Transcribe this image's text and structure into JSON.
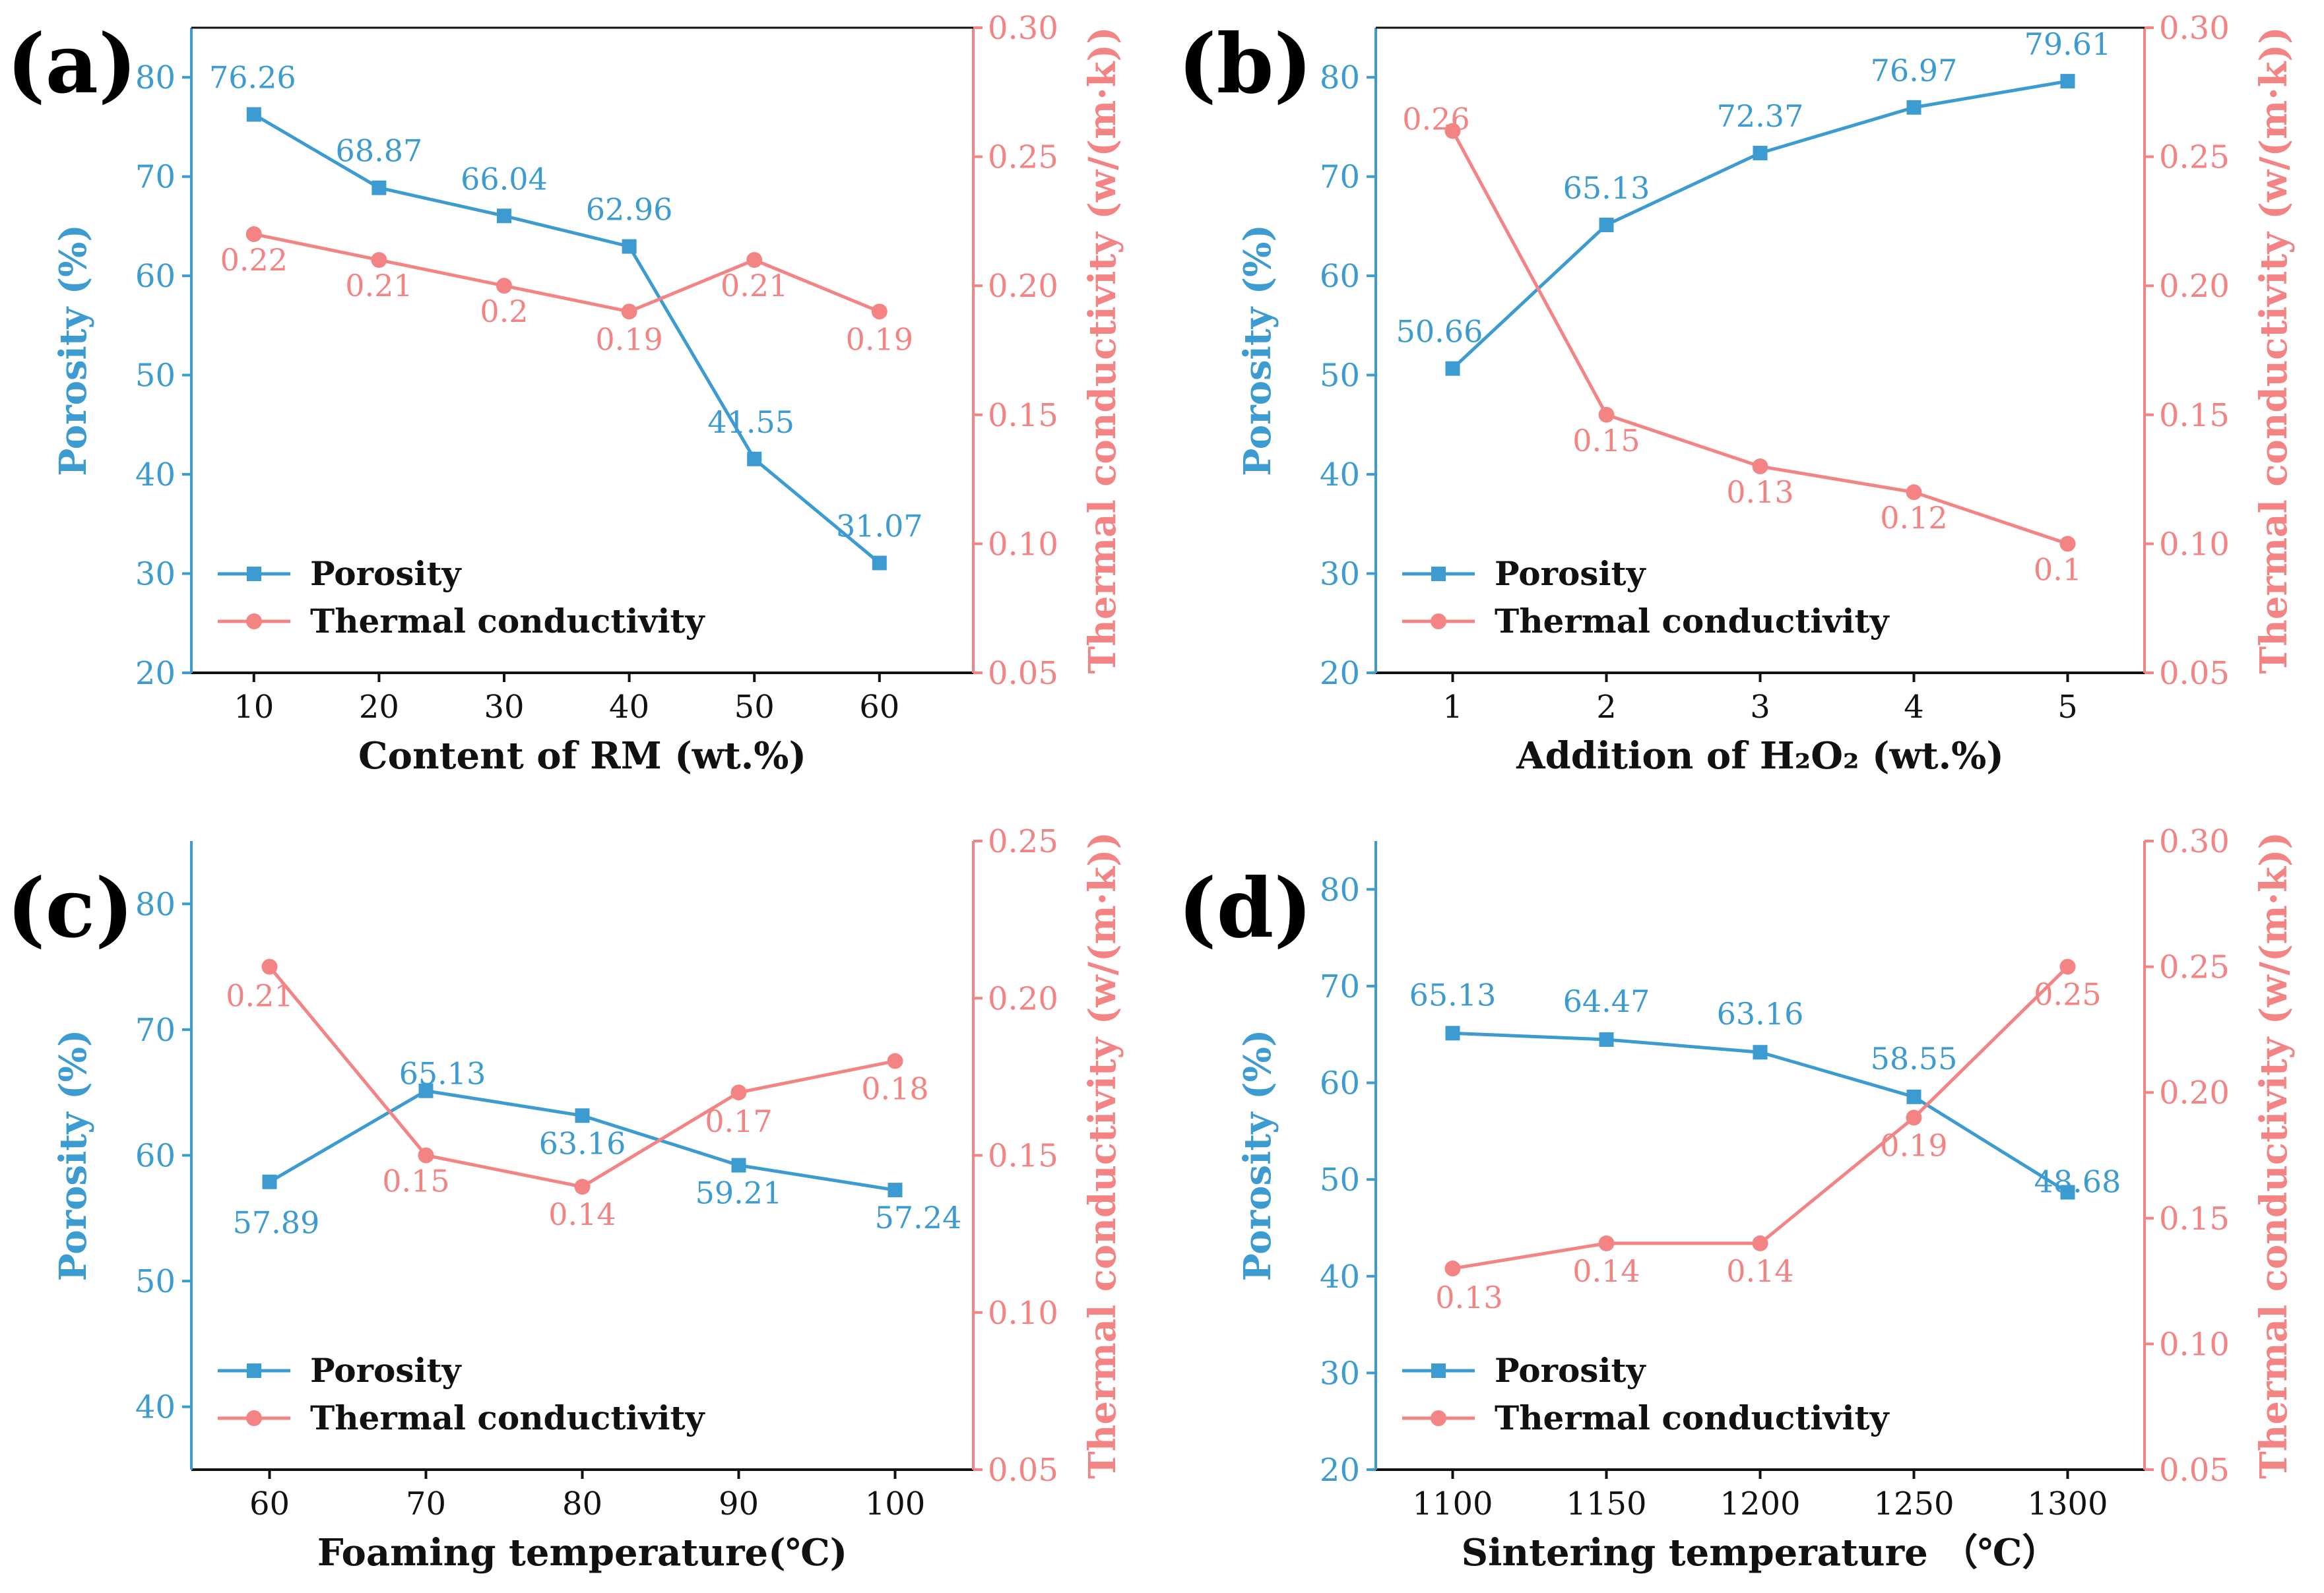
{
  "colors": {
    "porosity": "#3C9BD0",
    "thermal": "#F48383",
    "axis": "#111111"
  },
  "legend": {
    "porosity": "Porosity",
    "thermal": "Thermal conductivity"
  },
  "chart_data": [
    {
      "type": "line",
      "panel": "(a)",
      "xlabel": "Content of RM (wt.%)",
      "ylabel_left": "Porosity (%)",
      "ylabel_right": "Thermal conductivity (w/(m·k))",
      "x": [
        10,
        20,
        30,
        40,
        50,
        60
      ],
      "x_ticks": [
        "10",
        "20",
        "30",
        "40",
        "50",
        "60"
      ],
      "xlim": [
        5,
        67.5
      ],
      "ylim_left": [
        20,
        85
      ],
      "yticks_left": [
        20,
        30,
        40,
        50,
        60,
        70,
        80
      ],
      "ylim_right": [
        0.05,
        0.3
      ],
      "yticks_right": [
        0.05,
        0.1,
        0.15,
        0.2,
        0.25,
        0.3
      ],
      "series": [
        {
          "name": "Porosity",
          "axis": "left",
          "marker": "square",
          "values": [
            76.26,
            68.87,
            66.04,
            62.96,
            41.55,
            31.07
          ],
          "labels": [
            "76.26",
            "68.87",
            "66.04",
            "62.96",
            "41.55",
            "31.07"
          ]
        },
        {
          "name": "Thermal conductivity",
          "axis": "right",
          "marker": "circle",
          "values": [
            0.22,
            0.21,
            0.2,
            0.19,
            0.21,
            0.19
          ],
          "labels": [
            "0.22",
            "0.21",
            "0.2",
            "0.19",
            "0.21",
            "0.19"
          ]
        }
      ]
    },
    {
      "type": "line",
      "panel": "(b)",
      "xlabel": "Addition of H₂O₂ (wt.%)",
      "ylabel_left": "Porosity (%)",
      "ylabel_right": "Thermal conductivity (w/(m·k))",
      "x": [
        1,
        2,
        3,
        4,
        5
      ],
      "x_ticks": [
        "1",
        "2",
        "3",
        "4",
        "5"
      ],
      "xlim": [
        0.5,
        5.5
      ],
      "ylim_left": [
        20,
        85
      ],
      "yticks_left": [
        20,
        30,
        40,
        50,
        60,
        70,
        80
      ],
      "ylim_right": [
        0.05,
        0.3
      ],
      "yticks_right": [
        0.05,
        0.1,
        0.15,
        0.2,
        0.25,
        0.3
      ],
      "series": [
        {
          "name": "Porosity",
          "axis": "left",
          "marker": "square",
          "values": [
            50.66,
            65.13,
            72.37,
            76.97,
            79.61
          ],
          "labels": [
            "50.66",
            "65.13",
            "72.37",
            "76.97",
            "79.61"
          ]
        },
        {
          "name": "Thermal conductivity",
          "axis": "right",
          "marker": "circle",
          "values": [
            0.26,
            0.15,
            0.13,
            0.12,
            0.1
          ],
          "labels": [
            "0.26",
            "0.15",
            "0.13",
            "0.12",
            "0.1"
          ]
        }
      ]
    },
    {
      "type": "line",
      "panel": "(c)",
      "xlabel": "Foaming temperature(℃)",
      "ylabel_left": "Porosity (%)",
      "ylabel_right": "Thermal conductivity (w/(m·k))",
      "x": [
        60,
        70,
        80,
        90,
        100
      ],
      "x_ticks": [
        "60",
        "70",
        "80",
        "90",
        "100"
      ],
      "xlim": [
        55,
        105
      ],
      "ylim_left": [
        35,
        85
      ],
      "yticks_left": [
        40,
        50,
        60,
        70,
        80
      ],
      "ylim_right": [
        0.05,
        0.25
      ],
      "yticks_right": [
        0.05,
        0.1,
        0.15,
        0.2,
        0.25
      ],
      "series": [
        {
          "name": "Porosity",
          "axis": "left",
          "marker": "square",
          "values": [
            57.89,
            65.13,
            63.16,
            59.21,
            57.24
          ],
          "labels": [
            "57.89",
            "65.13",
            "63.16",
            "59.21",
            "57.24"
          ]
        },
        {
          "name": "Thermal conductivity",
          "axis": "right",
          "marker": "circle",
          "values": [
            0.21,
            0.15,
            0.14,
            0.17,
            0.18
          ],
          "labels": [
            "0.21",
            "0.15",
            "0.14",
            "0.17",
            "0.18"
          ]
        }
      ]
    },
    {
      "type": "line",
      "panel": "(d)",
      "xlabel": "Sintering temperature （℃）",
      "ylabel_left": "Porosity (%)",
      "ylabel_right": "Thermal conductivity (w/(m·k))",
      "x": [
        1100,
        1150,
        1200,
        1250,
        1300
      ],
      "x_ticks": [
        "1100",
        "1150",
        "1200",
        "1250",
        "1300"
      ],
      "xlim": [
        1075,
        1325
      ],
      "ylim_left": [
        20,
        85
      ],
      "yticks_left": [
        20,
        30,
        40,
        50,
        60,
        70,
        80
      ],
      "ylim_right": [
        0.05,
        0.3
      ],
      "yticks_right": [
        0.05,
        0.1,
        0.15,
        0.2,
        0.25,
        0.3
      ],
      "series": [
        {
          "name": "Porosity",
          "axis": "left",
          "marker": "square",
          "values": [
            65.13,
            64.47,
            63.16,
            58.55,
            48.68
          ],
          "labels": [
            "65.13",
            "64.47",
            "63.16",
            "58.55",
            "48.68"
          ]
        },
        {
          "name": "Thermal conductivity",
          "axis": "right",
          "marker": "circle",
          "values": [
            0.13,
            0.14,
            0.14,
            0.19,
            0.25
          ],
          "labels": [
            "0.13",
            "0.14",
            "0.14",
            "0.19",
            "0.25"
          ]
        }
      ]
    }
  ]
}
